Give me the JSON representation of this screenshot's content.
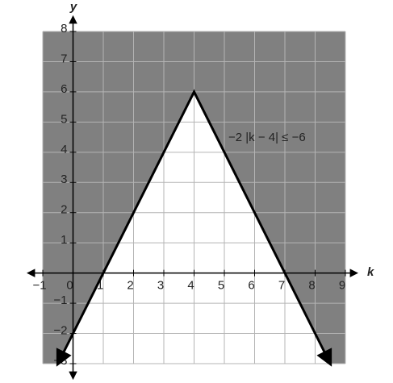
{
  "chart_data": {
    "type": "line",
    "x": [
      -0.5,
      4,
      8.5
    ],
    "series": [
      {
        "values": [
          -3,
          6,
          -3
        ],
        "color": "#000000"
      }
    ],
    "xlim": [
      -1,
      9
    ],
    "ylim": [
      -3,
      8
    ],
    "xticks": [
      {
        "value": -1,
        "label": "−1"
      },
      0,
      1,
      2,
      3,
      4,
      5,
      6,
      7,
      8,
      9
    ],
    "yticks": [
      {
        "value": -3,
        "label": "−3"
      },
      {
        "value": -2,
        "label": "−2"
      },
      {
        "value": -1,
        "label": "−1"
      },
      1,
      2,
      3,
      4,
      5,
      6,
      7,
      8
    ],
    "xlabel": "k",
    "ylabel": "y",
    "annotation": "−2 |k − 4| ≤ −6",
    "shade_color": "#808080",
    "grid": true
  }
}
